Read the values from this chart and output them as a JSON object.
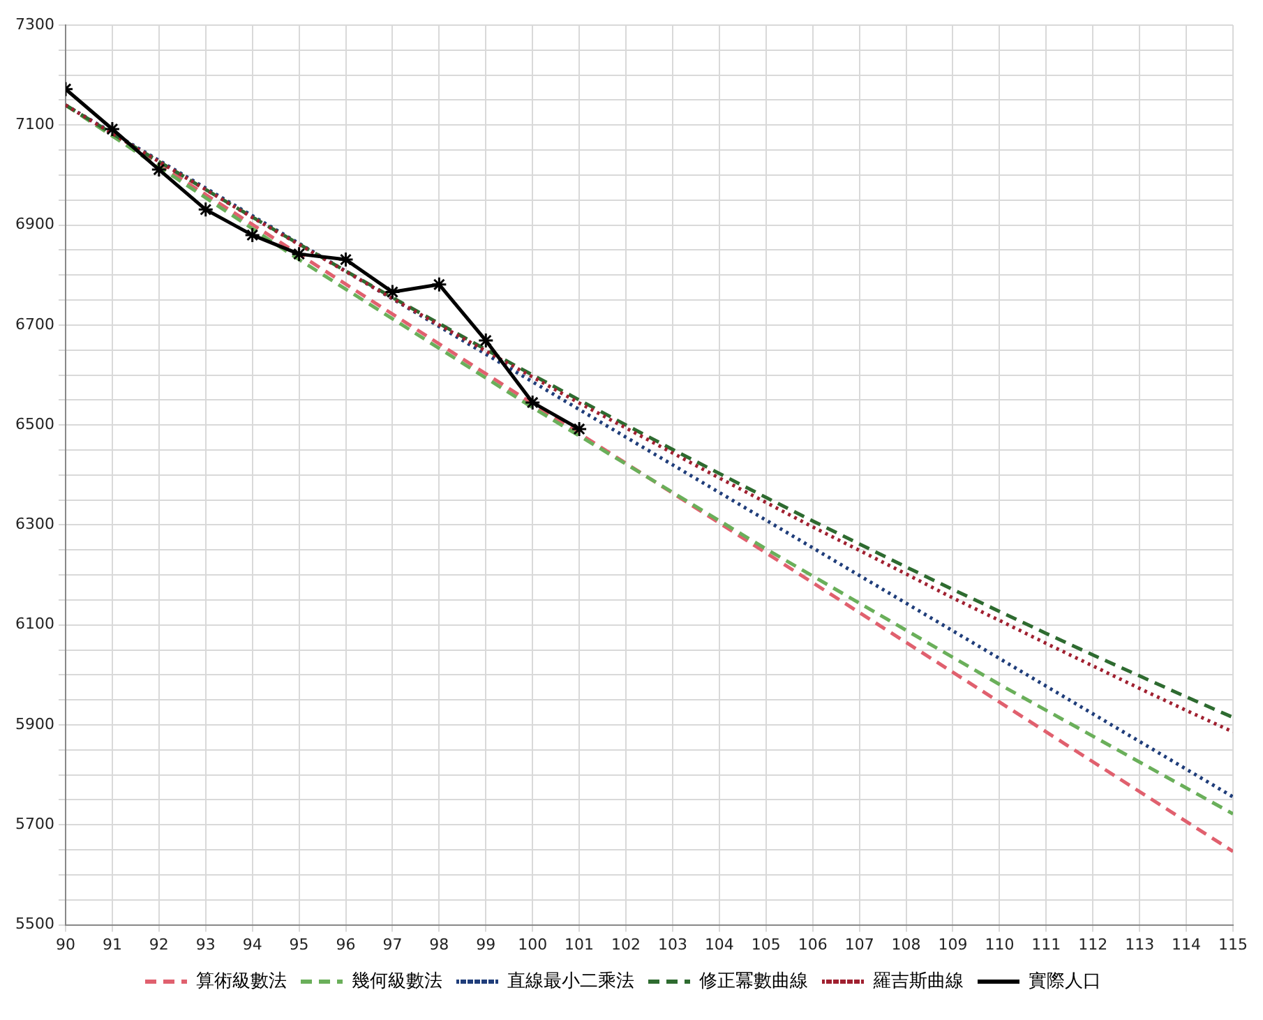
{
  "chart_data": {
    "type": "line",
    "xlim": [
      90,
      115
    ],
    "xticks": [
      90,
      91,
      92,
      93,
      94,
      95,
      96,
      97,
      98,
      99,
      100,
      101,
      102,
      103,
      104,
      105,
      106,
      107,
      108,
      109,
      110,
      111,
      112,
      113,
      114,
      115
    ],
    "ylim": [
      5500,
      7300
    ],
    "yticks": [
      5500,
      {
        "value": 5550,
        "label": null
      },
      {
        "value": 5600,
        "label": null
      },
      {
        "value": 5650,
        "label": null
      },
      5700,
      {
        "value": 5750,
        "label": null
      },
      {
        "value": 5800,
        "label": null
      },
      {
        "value": 5850,
        "label": null
      },
      5900,
      {
        "value": 5950,
        "label": null
      },
      {
        "value": 6000,
        "label": null
      },
      {
        "value": 6050,
        "label": null
      },
      6100,
      {
        "value": 6150,
        "label": null
      },
      {
        "value": 6200,
        "label": null
      },
      {
        "value": 6250,
        "label": null
      },
      6300,
      {
        "value": 6350,
        "label": null
      },
      {
        "value": 6400,
        "label": null
      },
      {
        "value": 6450,
        "label": null
      },
      6500,
      {
        "value": 6550,
        "label": null
      },
      {
        "value": 6600,
        "label": null
      },
      {
        "value": 6650,
        "label": null
      },
      6700,
      {
        "value": 6750,
        "label": null
      },
      {
        "value": 6800,
        "label": null
      },
      {
        "value": 6850,
        "label": null
      },
      6900,
      {
        "value": 6950,
        "label": null
      },
      {
        "value": 7000,
        "label": null
      },
      {
        "value": 7050,
        "label": null
      },
      7100,
      {
        "value": 7150,
        "label": null
      },
      {
        "value": 7200,
        "label": null
      },
      {
        "value": 7250,
        "label": null
      },
      7300
    ],
    "grid": true,
    "legend": "bottom",
    "series": [
      {
        "name": "算術級數法",
        "color": "#e0606e",
        "line_style": "dashed",
        "marker": "none",
        "x": [
          90,
          115
        ],
        "values": [
          7140,
          5647
        ]
      },
      {
        "name": "幾何級數法",
        "color": "#6aaf5a",
        "line_style": "dashed",
        "marker": "none",
        "x": [
          90,
          95,
          100,
          105,
          110,
          115
        ],
        "values": [
          7140,
          6831,
          6535,
          6252,
          5981,
          5722
        ]
      },
      {
        "name": "直線最小二乘法",
        "color": "#1f3d7a",
        "line_style": "dotted",
        "marker": "none",
        "x": [
          90,
          115
        ],
        "values": [
          7140,
          5756
        ]
      },
      {
        "name": "修正冪數曲線",
        "color": "#2e6b30",
        "line_style": "dashed",
        "marker": "none",
        "x": [
          90,
          91,
          92,
          93,
          94,
          95,
          96,
          97,
          98,
          99,
          100,
          101,
          102,
          103,
          104,
          105,
          106,
          107,
          108,
          109,
          110,
          111,
          112,
          113,
          114,
          115
        ],
        "values": [
          7140,
          7083,
          7027,
          6971,
          6916,
          6862,
          6808,
          6755,
          6703,
          6651,
          6600,
          6550,
          6500,
          6451,
          6403,
          6355,
          6308,
          6262,
          6216,
          6171,
          6127,
          6083,
          6040,
          5998,
          5956,
          5915
        ]
      },
      {
        "name": "羅吉斯曲線",
        "color": "#a02030",
        "line_style": "dotted",
        "marker": "none",
        "x": [
          90,
          91,
          92,
          93,
          94,
          95,
          96,
          97,
          98,
          99,
          100,
          101,
          102,
          103,
          104,
          105,
          106,
          107,
          108,
          109,
          110,
          111,
          112,
          113,
          114,
          115
        ],
        "values": [
          7140,
          7083,
          7027,
          6971,
          6915,
          6861,
          6807,
          6753,
          6700,
          6648,
          6596,
          6544,
          6494,
          6444,
          6394,
          6345,
          6296,
          6249,
          6202,
          6154,
          6109,
          6063,
          6018,
          5973,
          5929,
          5886
        ]
      },
      {
        "name": "實際人口",
        "color": "#000000",
        "line_style": "solid",
        "marker": "cross",
        "x": [
          90,
          91,
          92,
          93,
          94,
          95,
          96,
          97,
          98,
          99,
          100,
          101
        ],
        "values": [
          7172,
          7092,
          7011,
          6931,
          6880,
          6842,
          6831,
          6766,
          6781,
          6669,
          6545,
          6492
        ]
      }
    ]
  }
}
